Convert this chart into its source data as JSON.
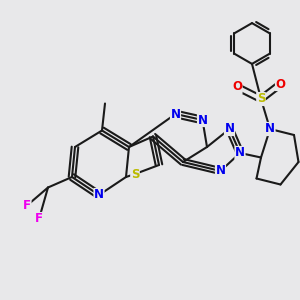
{
  "background_color": "#e8e8ea",
  "bond_color": "#1a1a1a",
  "bond_width": 1.5,
  "atom_colors": {
    "N": "#0000ee",
    "S": "#bbbb00",
    "F": "#ee00ee",
    "O": "#ee0000",
    "C": "#1a1a1a"
  },
  "font_size_atom": 8.5,
  "font_size_small": 7.0
}
